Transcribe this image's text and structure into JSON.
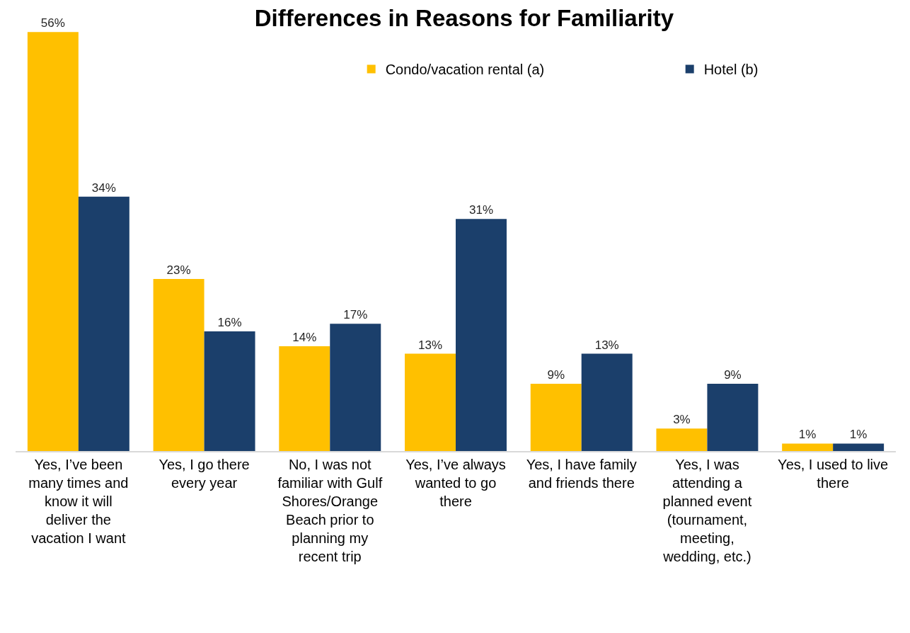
{
  "chart_data": {
    "type": "bar",
    "title": "Differences in Reasons for Familiarity",
    "categories": [
      "Yes, I’ve been many times and know it will deliver the vacation I want",
      "Yes, I go there every year",
      "No, I was not familiar with Gulf Shores/Orange Beach prior to planning my recent trip",
      "Yes, I’ve always wanted to go there",
      "Yes, I have family and friends there",
      "Yes, I was attending a planned event (tournament, meeting, wedding, etc.)",
      "Yes, I used to live there"
    ],
    "series": [
      {
        "name": "Condo/vacation rental (a)",
        "color": "#ffc000",
        "values": [
          56,
          23,
          14,
          13,
          9,
          3,
          1
        ],
        "value_labels": [
          "56%",
          "23%",
          "14%",
          "13%",
          "9%",
          "3%",
          "1%"
        ]
      },
      {
        "name": "Hotel (b)",
        "color": "#1b3f6b",
        "values": [
          34,
          16,
          17,
          31,
          13,
          9,
          1
        ],
        "value_labels": [
          "34%",
          "16%",
          "17%",
          "31%",
          "13%",
          "9%",
          "1%"
        ]
      }
    ],
    "legend": "top",
    "grid": false,
    "tick_labels": "x"
  }
}
